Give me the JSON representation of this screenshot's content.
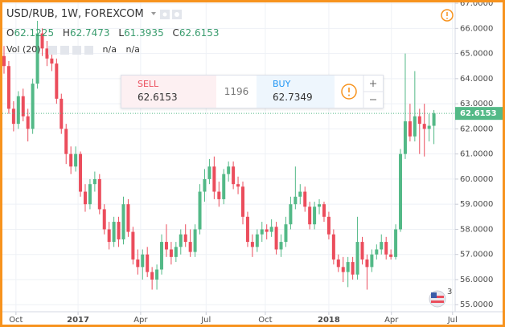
{
  "header": {
    "title": "USD/RUB, 1W, FOREXCOM",
    "ohlc_labels": [
      "O",
      "H",
      "L",
      "C"
    ],
    "volume_label": "Vol (20)",
    "volume_values": [
      "n/a",
      "n/a"
    ]
  },
  "trade_panel": {
    "sell_label": "SELL",
    "buy_label": "BUY",
    "spread": 1196,
    "buy_price": 62.7349
  },
  "badge": "3",
  "chart_data": {
    "type": "candlestick",
    "open": [
      64.9,
      64.5,
      62.8,
      62.2,
      63.3,
      62.5,
      62.0,
      63.8,
      65.8,
      65.2,
      64.8,
      64.6,
      63.2,
      62.0,
      61.0,
      60.5,
      61.0,
      59.5,
      59.0,
      59.8,
      60.0,
      58.8,
      58.0,
      57.5,
      58.3,
      57.6,
      59.0,
      57.9,
      56.8,
      56.5,
      57.0,
      56.3,
      56.0,
      56.4,
      57.5,
      57.2,
      56.9,
      57.3,
      57.8,
      57.5,
      57.1,
      58.0,
      59.5,
      60.0,
      60.5,
      59.5,
      59.2,
      60.2,
      60.5,
      59.8,
      59.7,
      58.5,
      57.5,
      57.3,
      57.8,
      58.0,
      57.9,
      58.1,
      57.2,
      57.5,
      58.2,
      59.0,
      59.3,
      59.5,
      58.9,
      58.2,
      58.9,
      59.0,
      58.5,
      57.8,
      56.8,
      56.5,
      56.3,
      56.7,
      56.2,
      57.5,
      56.8,
      56.5,
      57.0,
      57.2,
      57.5,
      57.0,
      56.9,
      58.0,
      61.0,
      62.3,
      61.7,
      62.5,
      62.2,
      62.0,
      62.1225
    ],
    "high": [
      65.3,
      64.7,
      63.1,
      63.5,
      63.6,
      62.8,
      64.0,
      66.3,
      66.0,
      65.5,
      65.0,
      64.8,
      63.4,
      62.2,
      61.3,
      61.3,
      61.1,
      59.8,
      60.0,
      60.3,
      60.2,
      59.0,
      58.3,
      58.5,
      58.5,
      59.3,
      59.2,
      58.1,
      57.2,
      57.2,
      57.3,
      56.5,
      56.6,
      57.8,
      58.2,
      57.5,
      57.5,
      58.0,
      58.2,
      58.0,
      58.2,
      59.8,
      60.4,
      60.8,
      60.9,
      59.9,
      60.4,
      60.7,
      60.7,
      60.1,
      59.9,
      58.7,
      57.8,
      58.0,
      58.3,
      58.2,
      58.4,
      58.3,
      57.8,
      58.5,
      59.3,
      60.5,
      59.8,
      59.7,
      59.1,
      59.1,
      59.2,
      59.1,
      58.7,
      58.0,
      57.0,
      56.9,
      56.9,
      56.9,
      58.5,
      57.7,
      57.0,
      57.2,
      57.4,
      57.8,
      57.7,
      57.2,
      58.2,
      61.2,
      65.0,
      63.0,
      64.3,
      62.8,
      63.0,
      62.6,
      62.7473
    ],
    "low": [
      64.2,
      62.6,
      61.9,
      62.0,
      62.3,
      61.5,
      61.8,
      63.6,
      64.9,
      64.5,
      64.3,
      63.0,
      61.8,
      60.6,
      60.2,
      60.3,
      59.3,
      58.7,
      58.8,
      59.5,
      58.6,
      57.8,
      57.2,
      57.3,
      57.3,
      57.4,
      57.7,
      56.6,
      56.2,
      56.0,
      56.1,
      55.6,
      55.6,
      56.2,
      56.9,
      56.6,
      56.7,
      57.0,
      57.3,
      56.9,
      56.9,
      57.8,
      59.1,
      59.8,
      59.2,
      58.9,
      59.0,
      59.9,
      59.6,
      59.4,
      58.2,
      57.3,
      56.9,
      57.1,
      57.5,
      57.6,
      57.7,
      57.0,
      56.9,
      57.3,
      58.0,
      58.8,
      59.0,
      58.7,
      58.0,
      58.0,
      58.6,
      58.3,
      57.6,
      56.6,
      56.3,
      55.9,
      55.7,
      56.0,
      56.0,
      56.6,
      55.6,
      56.3,
      56.8,
      57.0,
      56.8,
      56.8,
      56.8,
      57.9,
      60.8,
      61.5,
      61.5,
      61.0,
      60.9,
      61.5,
      61.3935
    ],
    "close": [
      64.5,
      62.8,
      62.2,
      63.3,
      62.5,
      62.0,
      63.8,
      65.8,
      65.2,
      64.8,
      64.6,
      63.2,
      62.0,
      61.0,
      60.5,
      61.0,
      59.5,
      59.0,
      59.8,
      60.0,
      58.8,
      58.0,
      57.5,
      58.3,
      57.6,
      59.0,
      57.9,
      56.8,
      56.5,
      57.0,
      56.3,
      56.0,
      56.4,
      57.5,
      57.2,
      56.9,
      57.3,
      57.8,
      57.5,
      57.1,
      58.0,
      59.5,
      60.0,
      60.5,
      59.5,
      59.2,
      60.2,
      60.5,
      59.8,
      59.7,
      58.5,
      57.5,
      57.3,
      57.8,
      58.0,
      57.9,
      58.1,
      57.2,
      57.5,
      58.2,
      59.0,
      59.3,
      59.5,
      58.9,
      58.2,
      58.9,
      59.0,
      58.5,
      57.8,
      56.8,
      56.5,
      56.3,
      56.7,
      56.2,
      57.5,
      56.8,
      56.5,
      57.0,
      57.2,
      57.5,
      57.0,
      56.9,
      58.0,
      61.0,
      62.3,
      61.7,
      62.5,
      62.2,
      62.0,
      62.1225,
      62.6153
    ],
    "up_color": "#53b987",
    "down_color": "#eb4d5c",
    "ylim": [
      54.72,
      67.13
    ],
    "yticks": [
      {
        "value": 55,
        "label": "55.0000"
      },
      {
        "value": 56,
        "label": "56.0000"
      },
      {
        "value": 57,
        "label": "57.0000"
      },
      {
        "value": 58,
        "label": "58.0000"
      },
      {
        "value": 59,
        "label": "59.0000"
      },
      {
        "value": 60,
        "label": "60.0000"
      },
      {
        "value": 61,
        "label": "61.0000"
      },
      {
        "value": 62,
        "label": "62.0000"
      },
      {
        "value": 63,
        "label": "63.0000"
      },
      {
        "value": 64,
        "label": "64.0000"
      },
      {
        "value": 65,
        "label": "65.0000"
      },
      {
        "value": 66,
        "label": "66.0000"
      },
      {
        "value": 67,
        "label": "67.0000"
      }
    ],
    "xticks": [
      {
        "value": 2.5,
        "label": "Oct"
      },
      {
        "value": 15.5,
        "label": "2017"
      },
      {
        "value": 28.6,
        "label": "Apr"
      },
      {
        "value": 42.3,
        "label": "Jul"
      },
      {
        "value": 54.7,
        "label": "Oct"
      },
      {
        "value": 68,
        "label": "2018"
      },
      {
        "value": 81.1,
        "label": "Apr"
      },
      {
        "value": 93.9,
        "label": "Jul"
      }
    ],
    "grid": true,
    "last_price_line": true
  }
}
